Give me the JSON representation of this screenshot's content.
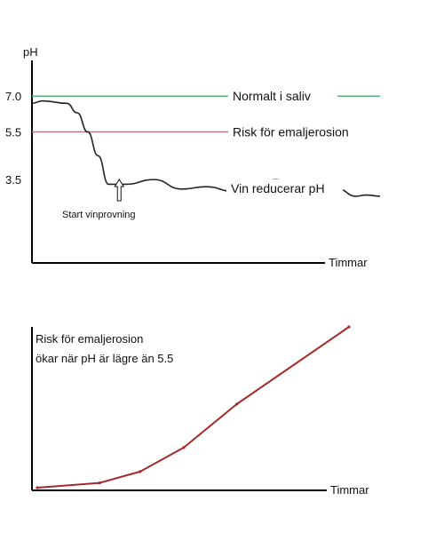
{
  "chart_data": [
    {
      "type": "line",
      "ylabel": "pH",
      "xlabel": "Timmar",
      "yticks": [
        {
          "value": 7.0,
          "label": "7.0"
        },
        {
          "value": 5.5,
          "label": "5.5"
        },
        {
          "value": 3.5,
          "label": "3.5"
        }
      ],
      "ylim": [
        0,
        8.5
      ],
      "xlim": [
        0,
        100
      ],
      "reference_lines": [
        {
          "value": 7.0,
          "label": "Normalt i saliv",
          "color": "#5cae7a"
        },
        {
          "value": 5.5,
          "label": "Risk för emaljerosion",
          "color": "#b07583"
        }
      ],
      "series": [
        {
          "label": "Vin reducerar pH",
          "color": "#222222",
          "x": [
            0,
            3,
            10,
            13,
            16,
            19,
            22,
            27,
            35,
            43,
            50,
            58,
            65,
            70,
            76,
            82,
            88,
            93,
            96,
            100
          ],
          "y": [
            6.7,
            6.8,
            6.7,
            6.3,
            5.5,
            4.5,
            3.3,
            3.3,
            3.5,
            3.1,
            3.2,
            3.0,
            3.3,
            3.5,
            3.1,
            3.0,
            3.1,
            2.8,
            2.85,
            2.8
          ]
        }
      ],
      "annotations": [
        {
          "text": "Start vinprovning",
          "x": 22,
          "arrow": "up"
        }
      ]
    },
    {
      "type": "line",
      "xlabel": "Timmar",
      "annotation_text": [
        "Risk för emaljerosion",
        "ökar när pH är lägre än 5.5"
      ],
      "xlim": [
        0,
        100
      ],
      "ylim": [
        0,
        100
      ],
      "series": [
        {
          "color": "#a52a2a",
          "x": [
            0,
            20,
            33,
            47,
            64,
            100
          ],
          "y": [
            0,
            3,
            10,
            25,
            52,
            100
          ]
        }
      ]
    }
  ]
}
